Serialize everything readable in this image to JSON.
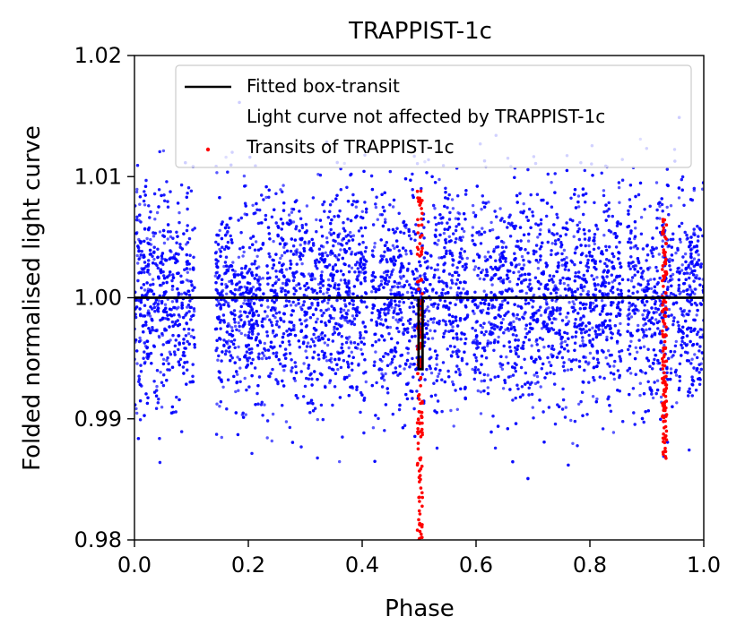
{
  "chart_data": {
    "type": "scatter",
    "title": "TRAPPIST-1c",
    "xlabel": "Phase",
    "ylabel": "Folded normalised light curve",
    "xlim": [
      0.0,
      1.0
    ],
    "ylim": [
      0.98,
      1.02
    ],
    "xticks": [
      "0.0",
      "0.2",
      "0.4",
      "0.6",
      "0.8",
      "1.0"
    ],
    "yticks": [
      "0.98",
      "0.99",
      "1.00",
      "1.01",
      "1.02"
    ],
    "grid": false,
    "legend_position": "top-right",
    "colors": {
      "fit": "#000000",
      "background": "#0000ff",
      "transit": "#ff0000"
    },
    "series": [
      {
        "name": "Fitted box-transit",
        "kind": "line",
        "x": [
          0.0,
          0.499,
          0.499,
          0.506,
          0.506,
          1.0
        ],
        "y": [
          1.0,
          1.0,
          0.9941,
          0.9941,
          1.0,
          1.0
        ]
      },
      {
        "name": "Light curve not affected by TRAPPIST-1c",
        "kind": "scatter",
        "baseline": 1.0,
        "scatter_sigma": 0.0045,
        "approx_points": 9000,
        "data_gaps": [
          [
            0.106,
            0.142
          ],
          [
            0.408,
            0.416
          ],
          [
            0.586,
            0.593
          ],
          [
            0.858,
            0.866
          ]
        ]
      },
      {
        "name": "Transits of TRAPPIST-1c",
        "kind": "scatter",
        "clusters": [
          {
            "x_range": [
              0.497,
              0.506
            ],
            "y_range": [
              0.98,
              1.009
            ]
          },
          {
            "x_range": [
              0.927,
              0.935
            ],
            "y_range": [
              0.9865,
              1.0065
            ]
          }
        ]
      }
    ]
  }
}
